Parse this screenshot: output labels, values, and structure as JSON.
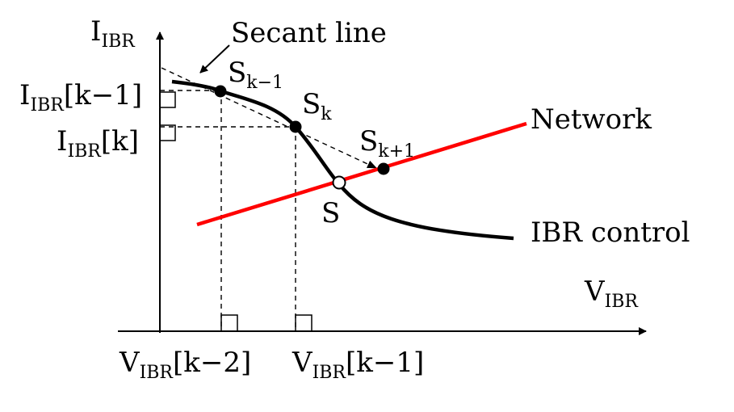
{
  "axes": {
    "y_label": {
      "main": "I",
      "sub": "IBR"
    },
    "x_label": {
      "main": "V",
      "sub": "IBR"
    }
  },
  "annotations": {
    "secant_line": "Secant line",
    "network": "Network",
    "ibr_control": "IBR control"
  },
  "points": {
    "s_km1": {
      "main": "S",
      "sub": "k−1"
    },
    "s_k": {
      "main": "S",
      "sub": "k"
    },
    "s_kp1": {
      "main": "S",
      "sub": "k+1"
    },
    "s": "S"
  },
  "y_ticks": {
    "i_km1": {
      "main": "I",
      "sub": "IBR",
      "suffix": "[k−1]"
    },
    "i_k": {
      "main": "I",
      "sub": "IBR",
      "suffix": "[k]"
    }
  },
  "x_ticks": {
    "v_km2": {
      "main": "V",
      "sub": "IBR",
      "suffix": "[k−2]"
    },
    "v_km1": {
      "main": "V",
      "sub": "IBR",
      "suffix": "[k−1]"
    }
  },
  "colors": {
    "network_line": "#ff0000",
    "curve": "#000000",
    "axis": "#000000"
  }
}
